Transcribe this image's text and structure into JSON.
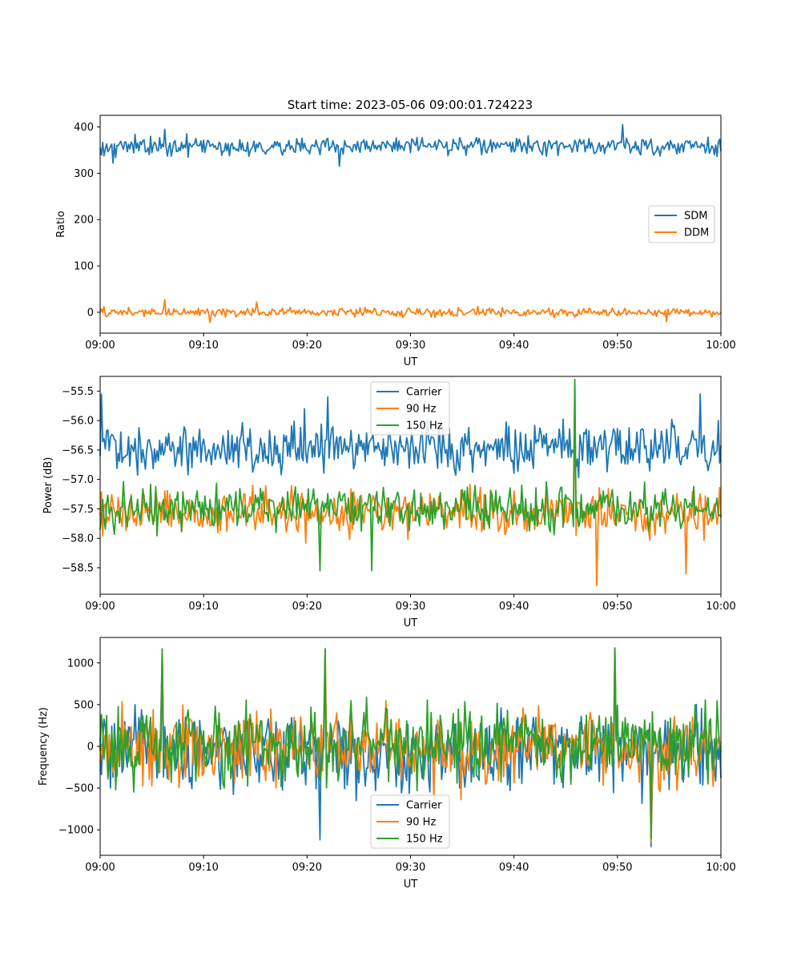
{
  "figure": {
    "title": "Start time: 2023-05-06 09:00:01.724223"
  },
  "colors": {
    "c1": "#1f77b4",
    "c2": "#ff7f0e",
    "c3": "#2ca02c"
  },
  "chart_data": [
    {
      "type": "line",
      "title": "Start time: 2023-05-06 09:00:01.724223",
      "xlabel": "UT",
      "ylabel": "Ratio",
      "x_range": [
        "09:00",
        "10:00"
      ],
      "ylim": [
        -45,
        425
      ],
      "yticks": [
        0,
        100,
        200,
        300,
        400
      ],
      "xticks": [
        "09:00",
        "09:10",
        "09:20",
        "09:30",
        "09:40",
        "09:50",
        "10:00"
      ],
      "legend_position": "center-right",
      "series": [
        {
          "name": "SDM",
          "color": "#1f77b4",
          "mean": 358,
          "amp": 18,
          "spikes": [
            [
              6.2,
              395
            ],
            [
              50.5,
              405
            ],
            [
              23.1,
              315
            ],
            [
              1.2,
              322
            ]
          ]
        },
        {
          "name": "DDM",
          "color": "#ff7f0e",
          "mean": 0,
          "amp": 9,
          "spikes": [
            [
              6.2,
              27
            ],
            [
              10.6,
              -22
            ],
            [
              15.1,
              22
            ],
            [
              54.8,
              -20
            ]
          ]
        }
      ]
    },
    {
      "type": "line",
      "title": "",
      "xlabel": "UT",
      "ylabel": "Power (dB)",
      "x_range": [
        "09:00",
        "10:00"
      ],
      "ylim": [
        -58.95,
        -55.25
      ],
      "yticks": [
        -58.5,
        -58.0,
        -57.5,
        -57.0,
        -56.5,
        -56.0,
        -55.5
      ],
      "xticks": [
        "09:00",
        "09:10",
        "09:20",
        "09:30",
        "09:40",
        "09:50",
        "10:00"
      ],
      "legend_position": "upper center",
      "series": [
        {
          "name": "Carrier",
          "color": "#1f77b4",
          "mean": -56.45,
          "amp": 0.38,
          "spikes": [
            [
              0.1,
              -55.55
            ],
            [
              19.8,
              -55.8
            ],
            [
              22.0,
              -55.6
            ],
            [
              59.7,
              -56.0
            ],
            [
              58.0,
              -55.55
            ]
          ]
        },
        {
          "name": "90 Hz",
          "color": "#ff7f0e",
          "mean": -57.55,
          "amp": 0.35,
          "spikes": [
            [
              45.9,
              -55.35
            ],
            [
              48.0,
              -58.8
            ],
            [
              56.6,
              -58.6
            ]
          ]
        },
        {
          "name": "150 Hz",
          "color": "#2ca02c",
          "mean": -57.5,
          "amp": 0.33,
          "spikes": [
            [
              45.9,
              -55.3
            ],
            [
              21.2,
              -58.55
            ],
            [
              26.3,
              -58.55
            ]
          ]
        }
      ]
    },
    {
      "type": "line",
      "title": "",
      "xlabel": "UT",
      "ylabel": "Frequency (Hz)",
      "x_range": [
        "09:00",
        "10:00"
      ],
      "ylim": [
        -1305,
        1305
      ],
      "yticks": [
        -1000,
        -500,
        0,
        500,
        1000
      ],
      "xticks": [
        "09:00",
        "09:10",
        "09:20",
        "09:30",
        "09:40",
        "09:50",
        "10:00"
      ],
      "legend_position": "lower center",
      "series": [
        {
          "name": "Carrier",
          "color": "#1f77b4",
          "mean": -80,
          "amp": 420,
          "spikes": [
            [
              6.0,
              1150
            ],
            [
              21.8,
              1150
            ],
            [
              49.7,
              1170
            ],
            [
              53.2,
              -1200
            ],
            [
              21.2,
              -1120
            ]
          ]
        },
        {
          "name": "90 Hz",
          "color": "#ff7f0e",
          "mean": -20,
          "amp": 420,
          "spikes": [
            [
              6.0,
              1160
            ],
            [
              21.8,
              1160
            ],
            [
              49.7,
              1175
            ],
            [
              53.2,
              -1150
            ]
          ]
        },
        {
          "name": "150 Hz",
          "color": "#2ca02c",
          "mean": 40,
          "amp": 420,
          "spikes": [
            [
              6.0,
              1170
            ],
            [
              21.8,
              1170
            ],
            [
              49.7,
              1180
            ],
            [
              53.2,
              -1100
            ]
          ]
        }
      ]
    }
  ]
}
